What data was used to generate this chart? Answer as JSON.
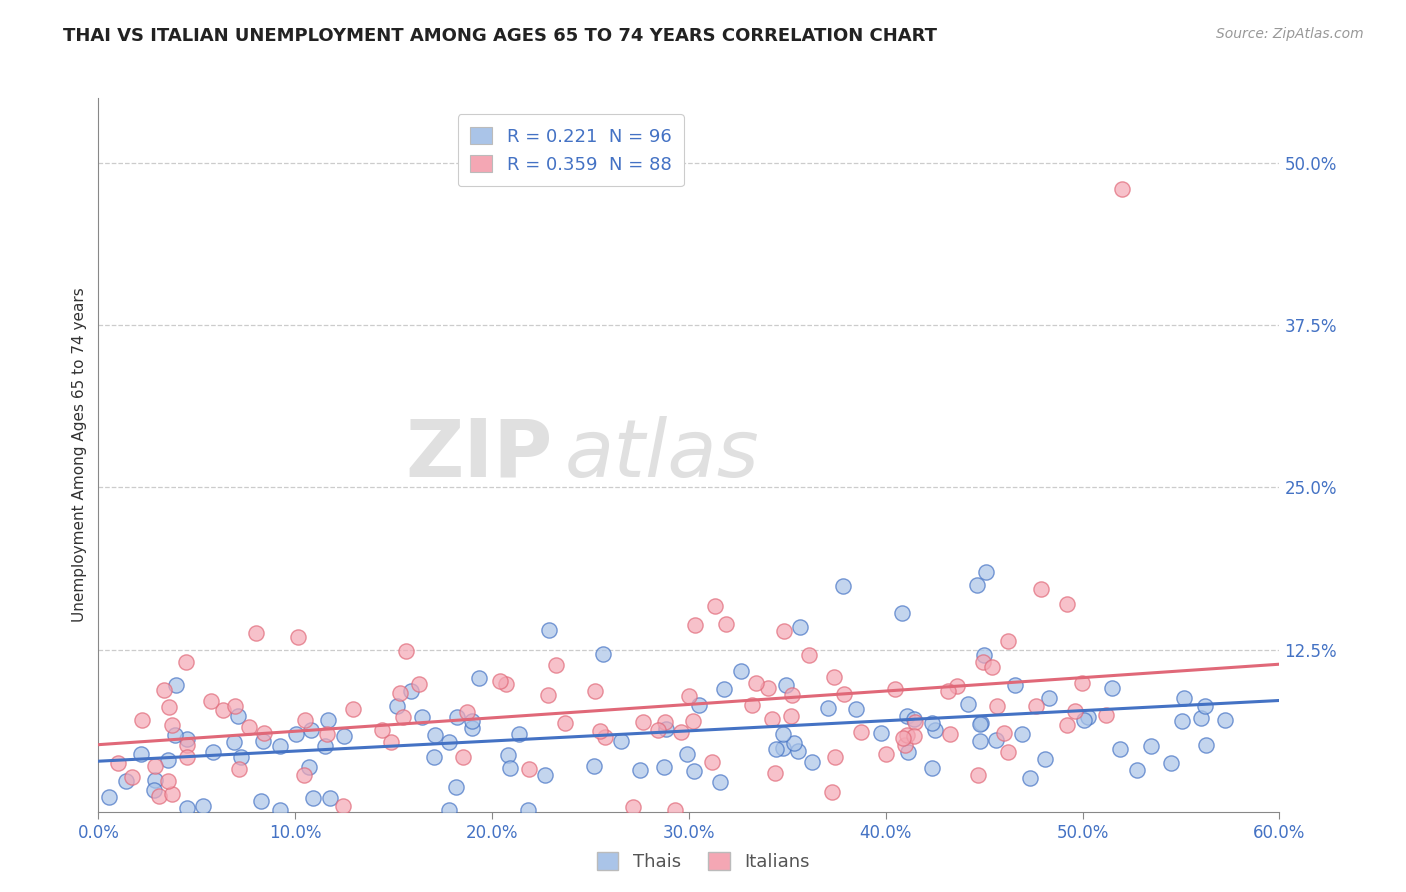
{
  "title": "THAI VS ITALIAN UNEMPLOYMENT AMONG AGES 65 TO 74 YEARS CORRELATION CHART",
  "source": "Source: ZipAtlas.com",
  "ylabel": "Unemployment Among Ages 65 to 74 years",
  "xlim": [
    0.0,
    0.6
  ],
  "ylim": [
    0.0,
    0.55
  ],
  "xticks": [
    0.0,
    0.1,
    0.2,
    0.3,
    0.4,
    0.5,
    0.6
  ],
  "yticks": [
    0.125,
    0.25,
    0.375,
    0.5
  ],
  "background_color": "#ffffff",
  "grid_color": "#cccccc",
  "thai_color": "#aac4e8",
  "italian_color": "#f4a7b4",
  "thai_line_color": "#4472c4",
  "italian_line_color": "#e06878",
  "thai_R": 0.221,
  "thai_N": 96,
  "italian_R": 0.359,
  "italian_N": 88,
  "legend_label_thai": "Thais",
  "legend_label_italian": "Italians",
  "title_fontsize": 13,
  "axis_label_fontsize": 11,
  "tick_fontsize": 12,
  "source_fontsize": 10,
  "legend_fontsize": 13
}
